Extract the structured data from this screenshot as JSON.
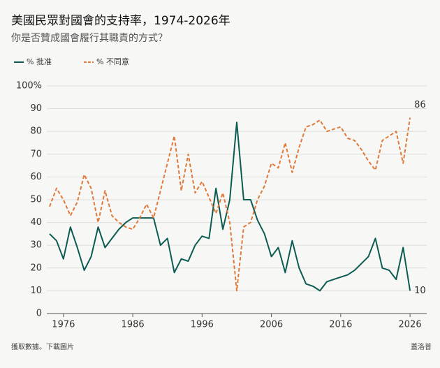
{
  "chart_data": {
    "type": "line",
    "title": "美國民眾對國會的支持率，1974-2026年",
    "subtitle": "你是否贊成國會履行其職責的方式？",
    "x": [
      1974,
      1975,
      1976,
      1977,
      1978,
      1979,
      1980,
      1981,
      1982,
      1983,
      1984,
      1985,
      1986,
      1987,
      1988,
      1989,
      1990,
      1991,
      1992,
      1993,
      1994,
      1995,
      1996,
      1997,
      1998,
      1999,
      2000,
      2001,
      2002,
      2003,
      2004,
      2005,
      2006,
      2007,
      2008,
      2009,
      2010,
      2011,
      2012,
      2013,
      2014,
      2015,
      2016,
      2017,
      2018,
      2019,
      2020,
      2021,
      2022,
      2023,
      2024,
      2025,
      2026
    ],
    "series": [
      {
        "name": "% 批准",
        "color": "#0d5c52",
        "dash": false,
        "values": [
          35,
          32,
          24,
          38,
          29,
          19,
          25,
          38,
          29,
          33,
          37,
          40,
          42,
          42,
          42,
          42,
          30,
          33,
          18,
          24,
          23,
          30,
          34,
          33,
          55,
          37,
          50,
          84,
          50,
          50,
          41,
          35,
          25,
          29,
          18,
          32,
          20,
          13,
          12,
          10,
          14,
          15,
          16,
          17,
          19,
          22,
          25,
          33,
          20,
          19,
          15,
          29,
          10
        ]
      },
      {
        "name": "% 不同意",
        "color": "#e07a3a",
        "dash": true,
        "values": [
          47,
          55,
          50,
          43,
          49,
          61,
          55,
          40,
          54,
          43,
          40,
          38,
          37,
          42,
          48,
          42,
          54,
          66,
          78,
          54,
          70,
          53,
          58,
          51,
          44,
          53,
          40,
          10,
          38,
          40,
          50,
          56,
          66,
          64,
          75,
          62,
          73,
          82,
          83,
          85,
          80,
          81,
          82,
          77,
          76,
          72,
          67,
          63,
          76,
          78,
          80,
          66,
          86
        ]
      }
    ],
    "xlim": [
      1974,
      2027
    ],
    "xticks": [
      1976,
      1986,
      1996,
      2006,
      2016,
      2026
    ],
    "ylim": [
      0,
      100
    ],
    "yticks": [
      0,
      10,
      20,
      30,
      40,
      50,
      60,
      70,
      80,
      90,
      {
        "value": 100,
        "label": "100%"
      }
    ],
    "grid": true
  },
  "footer": {
    "left": "獲取數據。下載圖片",
    "right": "蓋洛普"
  }
}
